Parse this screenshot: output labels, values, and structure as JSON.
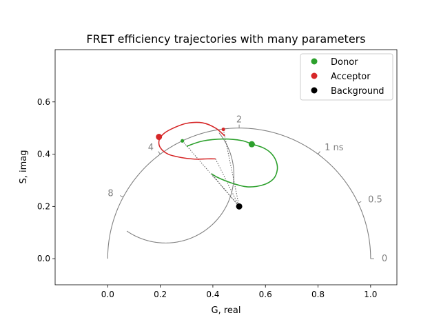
{
  "chart_data": {
    "type": "scatter",
    "title": "FRET efficiency trajectories with many parameters",
    "xlabel": "G, real",
    "ylabel": "S, imag",
    "xlim": [
      -0.2,
      1.1
    ],
    "ylim": [
      -0.1,
      0.8
    ],
    "xticks": [
      {
        "v": 0.0,
        "label": "0.0"
      },
      {
        "v": 0.2,
        "label": "0.2"
      },
      {
        "v": 0.4,
        "label": "0.4"
      },
      {
        "v": 0.6,
        "label": "0.6"
      },
      {
        "v": 0.8,
        "label": "0.8"
      },
      {
        "v": 1.0,
        "label": "1.0"
      }
    ],
    "yticks": [
      {
        "v": 0.0,
        "label": "0.0"
      },
      {
        "v": 0.2,
        "label": "0.2"
      },
      {
        "v": 0.4,
        "label": "0.4"
      },
      {
        "v": 0.6,
        "label": "0.6"
      }
    ],
    "grid": false,
    "legend_position": "top-right",
    "colors": {
      "donor": "#2ca02c",
      "acceptor": "#d62728",
      "background": "#000000",
      "reference": "#808080",
      "link": "#555555"
    },
    "legend": [
      {
        "name": "Donor",
        "color": "#2ca02c"
      },
      {
        "name": "Acceptor",
        "color": "#d62728"
      },
      {
        "name": "Background",
        "color": "#000000"
      }
    ],
    "lifetime_labels": [
      {
        "x": 1.0,
        "y": 0.0,
        "label": "0"
      },
      {
        "x": 0.9524,
        "y": 0.213,
        "label": "0.5"
      },
      {
        "x": 0.8,
        "y": 0.4,
        "label": "1 ns"
      },
      {
        "x": 0.5,
        "y": 0.5,
        "label": "2"
      },
      {
        "x": 0.2,
        "y": 0.4,
        "label": "4"
      },
      {
        "x": 0.0588,
        "y": 0.2353,
        "label": "8"
      }
    ],
    "series": [
      {
        "name": "Donor",
        "color": "#2ca02c",
        "x": [
          0.3,
          0.36,
          0.44,
          0.51,
          0.55,
          0.59,
          0.62,
          0.64,
          0.645,
          0.63,
          0.59,
          0.53,
          0.47,
          0.42,
          0.395
        ],
        "y": [
          0.43,
          0.45,
          0.458,
          0.452,
          0.438,
          0.425,
          0.405,
          0.375,
          0.34,
          0.305,
          0.282,
          0.275,
          0.29,
          0.31,
          0.325
        ],
        "marker_start": {
          "x": 0.284,
          "y": 0.451
        },
        "marker_current": {
          "x": 0.548,
          "y": 0.438
        }
      },
      {
        "name": "Acceptor",
        "color": "#d62728",
        "x": [
          0.445,
          0.41,
          0.36,
          0.3,
          0.25,
          0.215,
          0.196,
          0.2,
          0.23,
          0.28,
          0.33,
          0.38,
          0.41
        ],
        "y": [
          0.47,
          0.5,
          0.52,
          0.518,
          0.5,
          0.48,
          0.455,
          0.425,
          0.4,
          0.387,
          0.381,
          0.382,
          0.382
        ],
        "marker_start": {
          "x": 0.44,
          "y": 0.495
        },
        "marker_current": {
          "x": 0.195,
          "y": 0.466
        }
      }
    ],
    "background_point": {
      "x": 0.5,
      "y": 0.2
    },
    "reference_curves": {
      "universal_semicircle": true,
      "fret_reference_arc": {
        "center": [
          0.22,
          0.32
        ],
        "radius": 0.26
      }
    }
  }
}
